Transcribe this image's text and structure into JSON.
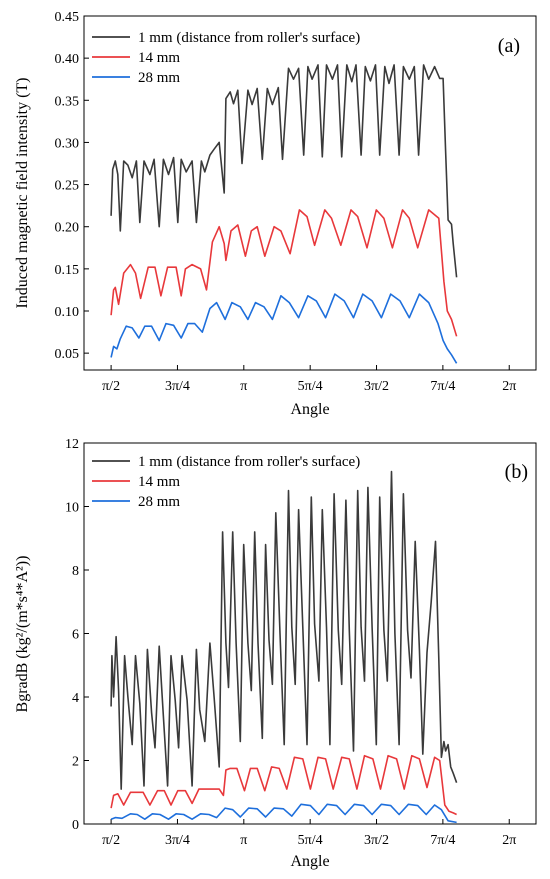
{
  "chart_data": [
    {
      "type": "line",
      "panel_label": "(a)",
      "xlabel": "Angle",
      "ylabel": "Induced magnetic field intensity (T)",
      "xlim": [
        1.25,
        6.6
      ],
      "ylim": [
        0.03,
        0.45
      ],
      "xticks": [
        {
          "label": "π/2",
          "value": 1.5708
        },
        {
          "label": "3π/4",
          "value": 2.3562
        },
        {
          "label": "π",
          "value": 3.1416
        },
        {
          "label": "5π/4",
          "value": 3.927
        },
        {
          "label": "3π/2",
          "value": 4.7124
        },
        {
          "label": "7π/4",
          "value": 5.4978
        },
        {
          "label": "2π",
          "value": 6.2832
        }
      ],
      "yticks": [
        {
          "label": "0.05",
          "value": 0.05
        },
        {
          "label": "0.10",
          "value": 0.1
        },
        {
          "label": "0.15",
          "value": 0.15
        },
        {
          "label": "0.20",
          "value": 0.2
        },
        {
          "label": "0.25",
          "value": 0.25
        },
        {
          "label": "0.30",
          "value": 0.3
        },
        {
          "label": "0.35",
          "value": 0.35
        },
        {
          "label": "0.40",
          "value": 0.4
        },
        {
          "label": "0.45",
          "value": 0.45
        }
      ],
      "legend_position": "top-left",
      "series": [
        {
          "name": "1 mm (distance from roller's surface)",
          "color": "#3a3a3a",
          "x": [
            1.571,
            1.59,
            1.62,
            1.65,
            1.68,
            1.72,
            1.77,
            1.82,
            1.87,
            1.91,
            1.96,
            2.03,
            2.08,
            2.14,
            2.19,
            2.25,
            2.31,
            2.36,
            2.4,
            2.46,
            2.53,
            2.58,
            2.64,
            2.68,
            2.74,
            2.79,
            2.85,
            2.91,
            2.93,
            2.98,
            3.02,
            3.07,
            3.12,
            3.19,
            3.24,
            3.3,
            3.36,
            3.42,
            3.48,
            3.55,
            3.6,
            3.67,
            3.73,
            3.79,
            3.85,
            3.9,
            3.95,
            4.02,
            4.07,
            4.12,
            4.19,
            4.25,
            4.3,
            4.36,
            4.42,
            4.47,
            4.53,
            4.58,
            4.64,
            4.7,
            4.75,
            4.81,
            4.86,
            4.92,
            4.98,
            5.03,
            5.1,
            5.16,
            5.21,
            5.27,
            5.33,
            5.4,
            5.46,
            5.5,
            5.53,
            5.56,
            5.6,
            5.62,
            5.66
          ],
          "y": [
            0.213,
            0.268,
            0.278,
            0.262,
            0.195,
            0.278,
            0.273,
            0.258,
            0.278,
            0.205,
            0.278,
            0.262,
            0.28,
            0.2,
            0.28,
            0.262,
            0.282,
            0.205,
            0.28,
            0.265,
            0.278,
            0.205,
            0.278,
            0.265,
            0.285,
            0.292,
            0.3,
            0.24,
            0.352,
            0.36,
            0.346,
            0.362,
            0.275,
            0.362,
            0.345,
            0.364,
            0.28,
            0.364,
            0.345,
            0.365,
            0.28,
            0.388,
            0.375,
            0.388,
            0.285,
            0.39,
            0.375,
            0.392,
            0.283,
            0.392,
            0.375,
            0.392,
            0.283,
            0.392,
            0.372,
            0.392,
            0.285,
            0.39,
            0.373,
            0.392,
            0.285,
            0.39,
            0.37,
            0.392,
            0.285,
            0.39,
            0.375,
            0.39,
            0.285,
            0.392,
            0.375,
            0.39,
            0.376,
            0.376,
            0.29,
            0.208,
            0.203,
            0.18,
            0.14
          ]
        },
        {
          "name": "14 mm",
          "color": "#e8383b",
          "x": [
            1.571,
            1.6,
            1.62,
            1.66,
            1.72,
            1.8,
            1.86,
            1.92,
            2.01,
            2.09,
            2.16,
            2.24,
            2.34,
            2.4,
            2.45,
            2.53,
            2.63,
            2.7,
            2.77,
            2.85,
            2.91,
            2.93,
            2.99,
            3.07,
            3.16,
            3.23,
            3.3,
            3.39,
            3.5,
            3.58,
            3.69,
            3.8,
            3.89,
            3.98,
            4.1,
            4.18,
            4.29,
            4.41,
            4.49,
            4.6,
            4.71,
            4.8,
            4.9,
            5.02,
            5.1,
            5.2,
            5.33,
            5.45,
            5.51,
            5.55,
            5.6,
            5.66
          ],
          "y": [
            0.095,
            0.125,
            0.128,
            0.108,
            0.145,
            0.155,
            0.145,
            0.115,
            0.152,
            0.152,
            0.118,
            0.152,
            0.152,
            0.118,
            0.15,
            0.155,
            0.15,
            0.125,
            0.182,
            0.2,
            0.18,
            0.16,
            0.195,
            0.202,
            0.165,
            0.195,
            0.2,
            0.165,
            0.2,
            0.195,
            0.168,
            0.22,
            0.212,
            0.178,
            0.22,
            0.21,
            0.178,
            0.22,
            0.212,
            0.175,
            0.22,
            0.21,
            0.175,
            0.22,
            0.21,
            0.175,
            0.22,
            0.21,
            0.135,
            0.1,
            0.09,
            0.07
          ]
        },
        {
          "name": "28 mm",
          "color": "#1e6fdc",
          "x": [
            1.571,
            1.6,
            1.64,
            1.68,
            1.75,
            1.82,
            1.9,
            1.97,
            2.05,
            2.14,
            2.22,
            2.31,
            2.4,
            2.48,
            2.56,
            2.65,
            2.74,
            2.82,
            2.92,
            3.0,
            3.1,
            3.19,
            3.28,
            3.38,
            3.48,
            3.58,
            3.68,
            3.79,
            3.9,
            4.0,
            4.11,
            4.22,
            4.33,
            4.44,
            4.55,
            4.66,
            4.77,
            4.88,
            4.99,
            5.1,
            5.22,
            5.33,
            5.44,
            5.5,
            5.55,
            5.6,
            5.66
          ],
          "y": [
            0.045,
            0.058,
            0.055,
            0.067,
            0.082,
            0.08,
            0.068,
            0.082,
            0.082,
            0.065,
            0.085,
            0.083,
            0.068,
            0.085,
            0.085,
            0.075,
            0.103,
            0.11,
            0.09,
            0.11,
            0.105,
            0.09,
            0.11,
            0.105,
            0.09,
            0.118,
            0.11,
            0.092,
            0.118,
            0.112,
            0.092,
            0.12,
            0.112,
            0.092,
            0.12,
            0.112,
            0.092,
            0.12,
            0.112,
            0.092,
            0.12,
            0.11,
            0.085,
            0.065,
            0.055,
            0.048,
            0.038
          ]
        }
      ]
    },
    {
      "type": "line",
      "panel_label": "(b)",
      "xlabel": "Angle",
      "ylabel": "BgradB (kg²/(m*s⁴*A²))",
      "xlim": [
        1.25,
        6.6
      ],
      "ylim": [
        0,
        12
      ],
      "xticks": [
        {
          "label": "π/2",
          "value": 1.5708
        },
        {
          "label": "3π/4",
          "value": 2.3562
        },
        {
          "label": "π",
          "value": 3.1416
        },
        {
          "label": "5π/4",
          "value": 3.927
        },
        {
          "label": "3π/2",
          "value": 4.7124
        },
        {
          "label": "7π/4",
          "value": 5.4978
        },
        {
          "label": "2π",
          "value": 6.2832
        }
      ],
      "yticks": [
        {
          "label": "0",
          "value": 0
        },
        {
          "label": "2",
          "value": 2
        },
        {
          "label": "4",
          "value": 4
        },
        {
          "label": "6",
          "value": 6
        },
        {
          "label": "8",
          "value": 8
        },
        {
          "label": "10",
          "value": 10
        },
        {
          "label": "12",
          "value": 12
        }
      ],
      "legend_position": "top-left",
      "series": [
        {
          "name": "1 mm (distance from roller's surface)",
          "color": "#3a3a3a",
          "x": [
            1.571,
            1.58,
            1.6,
            1.63,
            1.66,
            1.69,
            1.73,
            1.77,
            1.82,
            1.86,
            1.91,
            1.96,
            2.0,
            2.05,
            2.09,
            2.14,
            2.18,
            2.24,
            2.28,
            2.33,
            2.37,
            2.41,
            2.47,
            2.53,
            2.58,
            2.62,
            2.68,
            2.74,
            2.79,
            2.85,
            2.89,
            2.93,
            2.96,
            3.01,
            3.05,
            3.1,
            3.14,
            3.19,
            3.23,
            3.27,
            3.31,
            3.36,
            3.4,
            3.44,
            3.48,
            3.52,
            3.57,
            3.62,
            3.67,
            3.71,
            3.75,
            3.79,
            3.84,
            3.89,
            3.94,
            3.98,
            4.03,
            4.07,
            4.12,
            4.16,
            4.21,
            4.26,
            4.3,
            4.35,
            4.39,
            4.44,
            4.49,
            4.53,
            4.57,
            4.61,
            4.66,
            4.71,
            4.75,
            4.8,
            4.84,
            4.89,
            4.93,
            4.98,
            5.03,
            5.08,
            5.12,
            5.17,
            5.22,
            5.26,
            5.31,
            5.36,
            5.41,
            5.45,
            5.48,
            5.51,
            5.53,
            5.56,
            5.59,
            5.62,
            5.66
          ],
          "y": [
            3.7,
            5.3,
            4.0,
            5.9,
            4.2,
            1.1,
            5.3,
            4.0,
            2.5,
            5.3,
            3.8,
            1.2,
            5.5,
            3.5,
            2.4,
            5.6,
            3.8,
            1.2,
            5.3,
            3.9,
            2.4,
            5.3,
            3.9,
            1.2,
            5.5,
            3.6,
            2.6,
            5.7,
            4.0,
            1.8,
            9.2,
            5.7,
            4.3,
            9.2,
            5.7,
            2.6,
            8.8,
            5.7,
            4.2,
            9.2,
            5.7,
            2.7,
            8.8,
            5.8,
            4.4,
            9.8,
            6.0,
            2.5,
            10.5,
            6.2,
            4.4,
            9.9,
            6.2,
            2.5,
            10.3,
            6.3,
            4.5,
            9.9,
            6.2,
            2.5,
            10.4,
            6.1,
            4.4,
            10.2,
            6.1,
            2.3,
            10.5,
            6.2,
            4.5,
            10.6,
            6.2,
            2.5,
            10.3,
            6.1,
            4.5,
            11.1,
            6.0,
            2.5,
            10.4,
            6.1,
            4.6,
            8.9,
            5.5,
            2.2,
            5.4,
            7.0,
            8.9,
            5.2,
            2.1,
            2.6,
            2.3,
            2.5,
            1.8,
            1.6,
            1.3
          ]
        },
        {
          "name": "14 mm",
          "color": "#e8383b",
          "x": [
            1.571,
            1.6,
            1.65,
            1.72,
            1.8,
            1.88,
            1.95,
            2.03,
            2.12,
            2.2,
            2.28,
            2.36,
            2.45,
            2.53,
            2.61,
            2.7,
            2.78,
            2.85,
            2.9,
            2.93,
            2.98,
            3.06,
            3.15,
            3.22,
            3.3,
            3.39,
            3.47,
            3.56,
            3.65,
            3.74,
            3.84,
            3.93,
            4.02,
            4.11,
            4.2,
            4.3,
            4.39,
            4.48,
            4.57,
            4.67,
            4.76,
            4.85,
            4.95,
            5.04,
            5.13,
            5.22,
            5.31,
            5.4,
            5.46,
            5.52,
            5.57,
            5.62,
            5.66
          ],
          "y": [
            0.5,
            0.9,
            0.95,
            0.6,
            1.0,
            1.0,
            1.0,
            0.6,
            1.05,
            1.05,
            0.6,
            1.05,
            1.05,
            0.65,
            1.1,
            1.1,
            1.1,
            1.1,
            0.9,
            1.7,
            1.75,
            1.75,
            1.05,
            1.75,
            1.75,
            1.05,
            1.8,
            1.75,
            1.1,
            2.1,
            2.05,
            1.1,
            2.1,
            2.05,
            1.1,
            2.1,
            2.05,
            1.1,
            2.15,
            2.05,
            1.1,
            2.15,
            2.05,
            1.1,
            2.15,
            2.05,
            1.15,
            2.1,
            2.0,
            0.6,
            0.4,
            0.35,
            0.3
          ]
        },
        {
          "name": "28 mm",
          "color": "#1e6fdc",
          "x": [
            1.571,
            1.62,
            1.7,
            1.8,
            1.88,
            1.97,
            2.06,
            2.15,
            2.25,
            2.34,
            2.43,
            2.53,
            2.63,
            2.73,
            2.82,
            2.92,
            3.01,
            3.1,
            3.2,
            3.3,
            3.4,
            3.5,
            3.61,
            3.71,
            3.82,
            3.93,
            4.03,
            4.13,
            4.24,
            4.34,
            4.45,
            4.56,
            4.66,
            4.77,
            4.88,
            4.98,
            5.09,
            5.2,
            5.3,
            5.4,
            5.48,
            5.56,
            5.66
          ],
          "y": [
            0.15,
            0.2,
            0.18,
            0.32,
            0.3,
            0.15,
            0.32,
            0.3,
            0.15,
            0.32,
            0.3,
            0.15,
            0.32,
            0.3,
            0.2,
            0.5,
            0.45,
            0.22,
            0.5,
            0.48,
            0.22,
            0.5,
            0.48,
            0.25,
            0.62,
            0.58,
            0.3,
            0.62,
            0.58,
            0.3,
            0.62,
            0.58,
            0.3,
            0.62,
            0.58,
            0.3,
            0.62,
            0.58,
            0.3,
            0.6,
            0.45,
            0.1,
            0.05
          ]
        }
      ]
    }
  ]
}
